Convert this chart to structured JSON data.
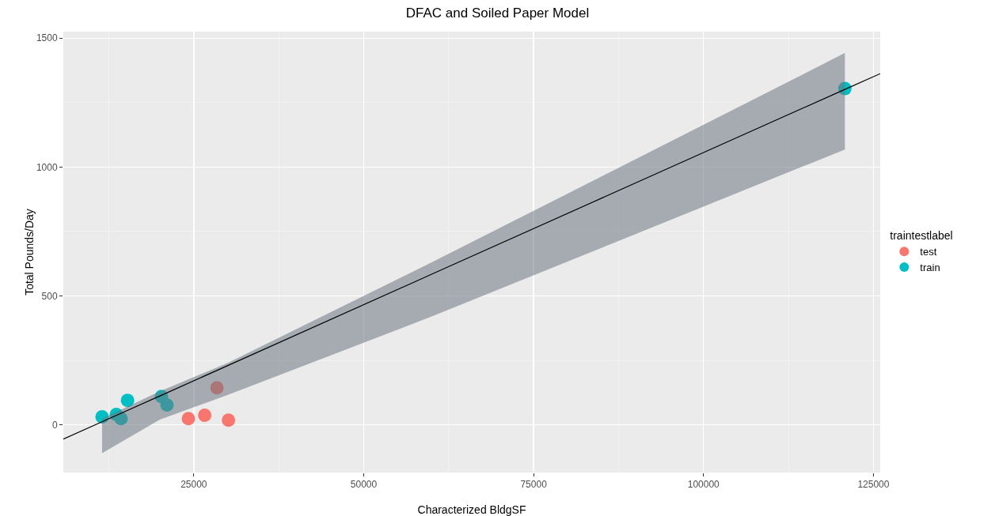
{
  "chart_data": {
    "type": "scatter",
    "title": "DFAC and Soiled Paper Model",
    "xlabel": "Characterized BldgSF",
    "ylabel": "Total Pounds/Day",
    "legend_title": "traintestlabel",
    "legend": "right",
    "grid": true,
    "marker": "circle",
    "xlim": [
      5800,
      126000
    ],
    "xticks": [
      25000,
      50000,
      75000,
      100000,
      125000
    ],
    "ylim": [
      -185,
      1525
    ],
    "yticks": [
      0,
      500,
      1000,
      1500
    ],
    "series": [
      {
        "name": "test",
        "color": "#f8766d",
        "x": [
          24200,
          26600,
          30100,
          28400
        ],
        "values": [
          24,
          37,
          18,
          144
        ]
      },
      {
        "name": "train",
        "color": "#00bfc4",
        "x": [
          11500,
          13600,
          14300,
          15250,
          20240,
          21050,
          120800
        ],
        "values": [
          31,
          40,
          24,
          95,
          110,
          77,
          1304
        ]
      },
      {
        "type": "line",
        "color": "#000000",
        "marker": "none",
        "line_style": "solid",
        "x": [
          5800,
          11500,
          20000,
          30000,
          60000,
          90000,
          120800,
          126000
        ],
        "values": [
          -55,
          12,
          112,
          230,
          584,
          938,
          1301,
          1362
        ],
        "lower": [
          null,
          -110,
          20,
          116,
          420,
          740,
          1068,
          null
        ],
        "upper": [
          null,
          24,
          130,
          240,
          630,
          1030,
          1442,
          null
        ]
      }
    ]
  }
}
